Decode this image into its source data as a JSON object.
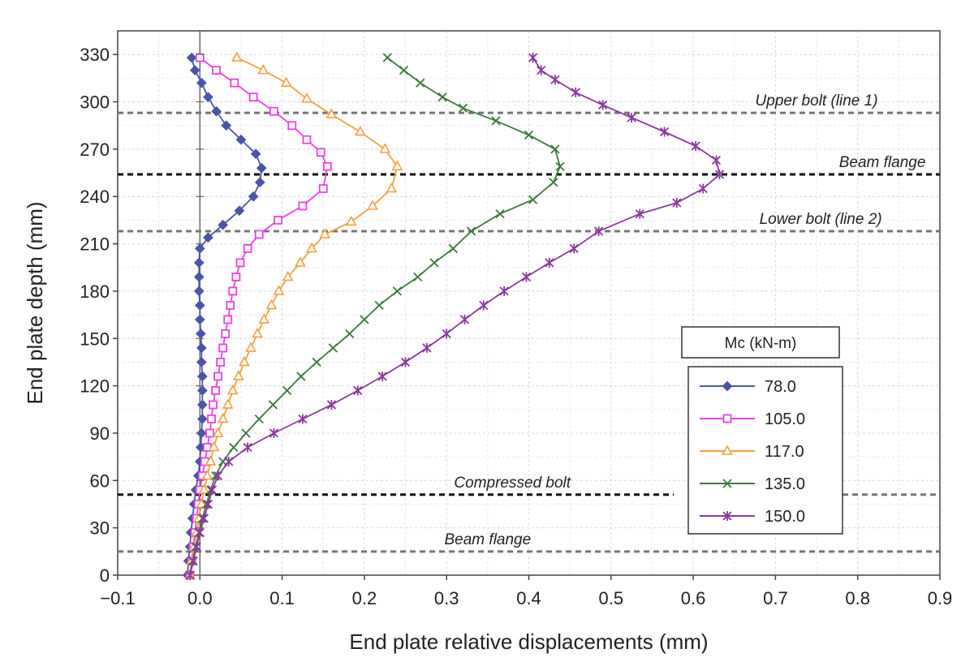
{
  "chart_data": {
    "type": "line",
    "xlabel": "End plate relative displacements (mm)",
    "ylabel": "End plate depth (mm)",
    "xlim": [
      -0.1,
      0.9
    ],
    "ylim": [
      0,
      345
    ],
    "x_ticks": [
      "−0.1",
      "0.0",
      "0.1",
      "0.2",
      "0.3",
      "0.4",
      "0.5",
      "0.6",
      "0.7",
      "0.8",
      "0.9"
    ],
    "y_ticks": [
      "0",
      "30",
      "60",
      "90",
      "120",
      "150",
      "180",
      "210",
      "240",
      "270",
      "300",
      "330"
    ],
    "grid": true,
    "legend": {
      "title": "Mc  (kN-m)",
      "placement": "lower-right"
    },
    "annotations": [
      {
        "text": "Upper bolt (line 1)",
        "y": 293,
        "x_text": 0.75
      },
      {
        "text": "Beam flange",
        "y": 254,
        "x_text": 0.83
      },
      {
        "text": "Lower bolt (line 2)",
        "y": 218,
        "x_text": 0.755
      },
      {
        "text": "Compressed bolt",
        "y": 51,
        "x_text": 0.38
      },
      {
        "text": "Beam flange",
        "y": 15,
        "x_text": 0.35
      }
    ],
    "series": [
      {
        "name": "78.0",
        "color": "#4a55a8",
        "marker": "diamond",
        "points": [
          [
            -0.015,
            0
          ],
          [
            -0.014,
            9
          ],
          [
            -0.012,
            18
          ],
          [
            -0.011,
            27
          ],
          [
            -0.009,
            36
          ],
          [
            -0.007,
            45
          ],
          [
            -0.005,
            54
          ],
          [
            -0.002,
            63
          ],
          [
            0.0,
            72
          ],
          [
            0.001,
            81
          ],
          [
            0.002,
            90
          ],
          [
            0.003,
            99
          ],
          [
            0.003,
            108
          ],
          [
            0.003,
            117
          ],
          [
            0.003,
            126
          ],
          [
            0.002,
            135
          ],
          [
            0.002,
            144
          ],
          [
            0.001,
            153
          ],
          [
            0.0,
            162
          ],
          [
            0.0,
            171
          ],
          [
            -0.001,
            180
          ],
          [
            -0.001,
            189
          ],
          [
            -0.001,
            198
          ],
          [
            0.0,
            207
          ],
          [
            0.01,
            214
          ],
          [
            0.028,
            222
          ],
          [
            0.048,
            231
          ],
          [
            0.065,
            240
          ],
          [
            0.073,
            249
          ],
          [
            0.075,
            258
          ],
          [
            0.068,
            267
          ],
          [
            0.05,
            276
          ],
          [
            0.032,
            285
          ],
          [
            0.02,
            294
          ],
          [
            0.01,
            303
          ],
          [
            0.002,
            312
          ],
          [
            -0.006,
            320
          ],
          [
            -0.01,
            328
          ]
        ]
      },
      {
        "name": "105.0",
        "color": "#ee3ee8",
        "marker": "square",
        "points": [
          [
            -0.012,
            0
          ],
          [
            -0.01,
            9
          ],
          [
            -0.008,
            18
          ],
          [
            -0.006,
            27
          ],
          [
            -0.004,
            36
          ],
          [
            -0.002,
            45
          ],
          [
            0.0,
            54
          ],
          [
            0.003,
            63
          ],
          [
            0.006,
            72
          ],
          [
            0.009,
            81
          ],
          [
            0.012,
            90
          ],
          [
            0.014,
            99
          ],
          [
            0.016,
            108
          ],
          [
            0.019,
            117
          ],
          [
            0.022,
            126
          ],
          [
            0.025,
            135
          ],
          [
            0.028,
            144
          ],
          [
            0.031,
            153
          ],
          [
            0.034,
            162
          ],
          [
            0.037,
            171
          ],
          [
            0.04,
            180
          ],
          [
            0.044,
            189
          ],
          [
            0.049,
            198
          ],
          [
            0.058,
            207
          ],
          [
            0.072,
            216
          ],
          [
            0.095,
            225
          ],
          [
            0.125,
            234
          ],
          [
            0.15,
            245
          ],
          [
            0.155,
            259
          ],
          [
            0.147,
            268
          ],
          [
            0.13,
            276
          ],
          [
            0.112,
            285
          ],
          [
            0.09,
            294
          ],
          [
            0.065,
            303
          ],
          [
            0.042,
            312
          ],
          [
            0.02,
            320
          ],
          [
            0.0,
            328
          ]
        ]
      },
      {
        "name": "117.0",
        "color": "#f4a040",
        "marker": "triangle",
        "points": [
          [
            -0.012,
            0
          ],
          [
            -0.01,
            9
          ],
          [
            -0.007,
            18
          ],
          [
            -0.004,
            27
          ],
          [
            -0.001,
            36
          ],
          [
            0.002,
            45
          ],
          [
            0.005,
            54
          ],
          [
            0.009,
            63
          ],
          [
            0.013,
            72
          ],
          [
            0.017,
            81
          ],
          [
            0.022,
            90
          ],
          [
            0.028,
            99
          ],
          [
            0.034,
            108
          ],
          [
            0.04,
            117
          ],
          [
            0.047,
            126
          ],
          [
            0.054,
            135
          ],
          [
            0.062,
            144
          ],
          [
            0.07,
            153
          ],
          [
            0.078,
            162
          ],
          [
            0.087,
            171
          ],
          [
            0.096,
            180
          ],
          [
            0.107,
            189
          ],
          [
            0.122,
            198
          ],
          [
            0.136,
            207
          ],
          [
            0.152,
            216
          ],
          [
            0.184,
            224
          ],
          [
            0.21,
            234
          ],
          [
            0.233,
            245
          ],
          [
            0.24,
            259
          ],
          [
            0.225,
            270
          ],
          [
            0.195,
            281
          ],
          [
            0.16,
            292
          ],
          [
            0.13,
            302
          ],
          [
            0.105,
            312
          ],
          [
            0.077,
            320
          ],
          [
            0.045,
            328
          ]
        ]
      },
      {
        "name": "135.0",
        "color": "#3e7a3e",
        "marker": "x",
        "points": [
          [
            -0.012,
            0
          ],
          [
            -0.009,
            9
          ],
          [
            -0.005,
            18
          ],
          [
            -0.001,
            27
          ],
          [
            0.003,
            36
          ],
          [
            0.008,
            45
          ],
          [
            0.013,
            54
          ],
          [
            0.019,
            63
          ],
          [
            0.028,
            72
          ],
          [
            0.041,
            81
          ],
          [
            0.056,
            90
          ],
          [
            0.072,
            99
          ],
          [
            0.089,
            108
          ],
          [
            0.106,
            117
          ],
          [
            0.123,
            126
          ],
          [
            0.142,
            135
          ],
          [
            0.162,
            144
          ],
          [
            0.182,
            153
          ],
          [
            0.2,
            162
          ],
          [
            0.218,
            171
          ],
          [
            0.24,
            180
          ],
          [
            0.265,
            189
          ],
          [
            0.285,
            198
          ],
          [
            0.308,
            207
          ],
          [
            0.33,
            218
          ],
          [
            0.365,
            229
          ],
          [
            0.405,
            238
          ],
          [
            0.43,
            249
          ],
          [
            0.438,
            259
          ],
          [
            0.432,
            270
          ],
          [
            0.4,
            279
          ],
          [
            0.36,
            288
          ],
          [
            0.32,
            296
          ],
          [
            0.295,
            303
          ],
          [
            0.268,
            312
          ],
          [
            0.248,
            320
          ],
          [
            0.228,
            328
          ]
        ]
      },
      {
        "name": "150.0",
        "color": "#8a3aa0",
        "marker": "star",
        "points": [
          [
            -0.012,
            0
          ],
          [
            -0.008,
            9
          ],
          [
            -0.004,
            18
          ],
          [
            0.0,
            27
          ],
          [
            0.005,
            36
          ],
          [
            0.01,
            45
          ],
          [
            0.015,
            54
          ],
          [
            0.022,
            63
          ],
          [
            0.035,
            72
          ],
          [
            0.058,
            81
          ],
          [
            0.09,
            90
          ],
          [
            0.125,
            99
          ],
          [
            0.16,
            108
          ],
          [
            0.192,
            117
          ],
          [
            0.222,
            126
          ],
          [
            0.25,
            135
          ],
          [
            0.276,
            144
          ],
          [
            0.3,
            153
          ],
          [
            0.322,
            162
          ],
          [
            0.345,
            171
          ],
          [
            0.37,
            180
          ],
          [
            0.397,
            189
          ],
          [
            0.425,
            198
          ],
          [
            0.455,
            207
          ],
          [
            0.485,
            218
          ],
          [
            0.535,
            229
          ],
          [
            0.58,
            236
          ],
          [
            0.612,
            245
          ],
          [
            0.632,
            254
          ],
          [
            0.628,
            263
          ],
          [
            0.603,
            272
          ],
          [
            0.565,
            281
          ],
          [
            0.525,
            290
          ],
          [
            0.49,
            298
          ],
          [
            0.457,
            306
          ],
          [
            0.432,
            314
          ],
          [
            0.415,
            320
          ],
          [
            0.405,
            328
          ]
        ]
      }
    ]
  }
}
